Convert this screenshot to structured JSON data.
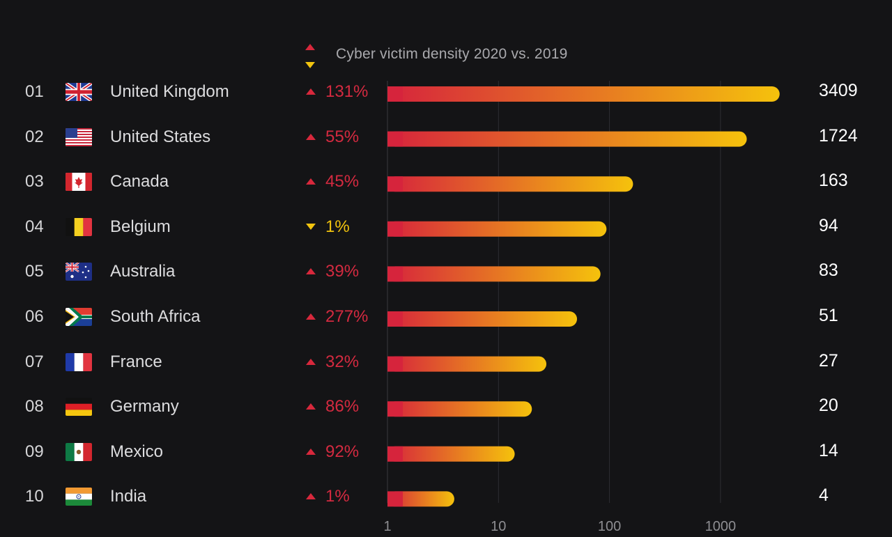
{
  "chart_data": {
    "type": "bar",
    "orientation": "horizontal",
    "scale": "log",
    "title": "Cyber victim density 2020 vs. 2019",
    "xlim": [
      1,
      3409
    ],
    "xticks": [
      "1",
      "10",
      "100",
      "1000"
    ],
    "legend": [
      {
        "symbol": "up",
        "color": "#d8283c"
      },
      {
        "symbol": "down",
        "color": "#f2c40f"
      }
    ],
    "gradient": [
      "#d6243c",
      "#f5c20c"
    ],
    "rows": [
      {
        "rank": "01",
        "country": "United Kingdom",
        "flag": "uk-flag-icon",
        "change": "131%",
        "direction": "up",
        "value": 3409,
        "value_label": "3409"
      },
      {
        "rank": "02",
        "country": "United States",
        "flag": "us-flag-icon",
        "change": "55%",
        "direction": "up",
        "value": 1724,
        "value_label": "1724"
      },
      {
        "rank": "03",
        "country": "Canada",
        "flag": "canada-flag-icon",
        "change": "45%",
        "direction": "up",
        "value": 163,
        "value_label": "163"
      },
      {
        "rank": "04",
        "country": "Belgium",
        "flag": "belgium-flag-icon",
        "change": "1%",
        "direction": "down",
        "value": 94,
        "value_label": "94"
      },
      {
        "rank": "05",
        "country": "Australia",
        "flag": "australia-flag-icon",
        "change": "39%",
        "direction": "up",
        "value": 83,
        "value_label": "83"
      },
      {
        "rank": "06",
        "country": "South Africa",
        "flag": "south-africa-flag-icon",
        "change": "277%",
        "direction": "up",
        "value": 51,
        "value_label": "51"
      },
      {
        "rank": "07",
        "country": "France",
        "flag": "france-flag-icon",
        "change": "32%",
        "direction": "up",
        "value": 27,
        "value_label": "27"
      },
      {
        "rank": "08",
        "country": "Germany",
        "flag": "germany-flag-icon",
        "change": "86%",
        "direction": "up",
        "value": 20,
        "value_label": "20"
      },
      {
        "rank": "09",
        "country": "Mexico",
        "flag": "mexico-flag-icon",
        "change": "92%",
        "direction": "up",
        "value": 14,
        "value_label": "14"
      },
      {
        "rank": "10",
        "country": "India",
        "flag": "india-flag-icon",
        "change": "1%",
        "direction": "up",
        "value": 4,
        "value_label": "4"
      }
    ]
  }
}
